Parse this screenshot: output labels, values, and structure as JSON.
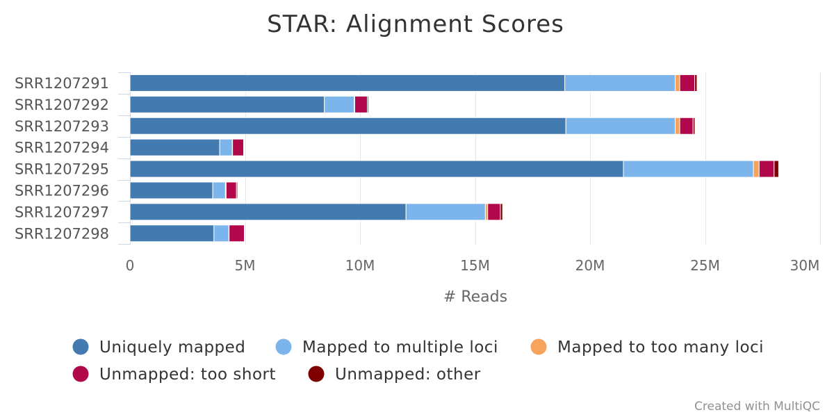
{
  "chart_data": {
    "type": "bar",
    "orientation": "horizontal",
    "stacked": true,
    "title": "STAR: Alignment Scores",
    "xlabel": "# Reads",
    "ylabel": "",
    "xlim": [
      0,
      30000000
    ],
    "x_ticks": [
      0,
      5000000,
      10000000,
      15000000,
      20000000,
      25000000,
      30000000
    ],
    "x_tick_labels": [
      "0",
      "5M",
      "10M",
      "15M",
      "20M",
      "25M",
      "30M"
    ],
    "grid": true,
    "legend_position": "bottom",
    "categories": [
      "SRR1207291",
      "SRR1207292",
      "SRR1207293",
      "SRR1207294",
      "SRR1207295",
      "SRR1207296",
      "SRR1207297",
      "SRR1207298"
    ],
    "series": [
      {
        "name": "Uniquely mapped",
        "color": "#437bb1",
        "values": [
          18900000,
          8450000,
          18950000,
          3900000,
          21450000,
          3600000,
          12000000,
          3650000
        ]
      },
      {
        "name": "Mapped to multiple loci",
        "color": "#7cb5ec",
        "values": [
          4800000,
          1300000,
          4750000,
          550000,
          5650000,
          550000,
          3450000,
          650000
        ]
      },
      {
        "name": "Mapped to too many loci",
        "color": "#f7a35c",
        "values": [
          200000,
          20000,
          200000,
          10000,
          250000,
          30000,
          100000,
          10000
        ]
      },
      {
        "name": "Unmapped: too short",
        "color": "#b1084c",
        "values": [
          650000,
          550000,
          580000,
          480000,
          650000,
          450000,
          550000,
          660000
        ]
      },
      {
        "name": "Unmapped: other",
        "color": "#7f0000",
        "values": [
          100000,
          50000,
          80000,
          20000,
          200000,
          50000,
          100000,
          20000
        ]
      }
    ],
    "credits": "Created with MultiQC"
  }
}
